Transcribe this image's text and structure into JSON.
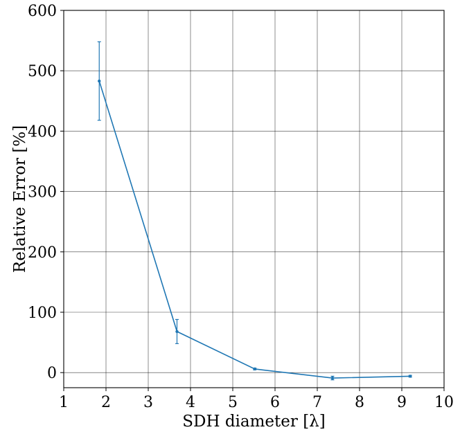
{
  "chart_data": {
    "type": "line",
    "title": "",
    "xlabel": "SDH diameter [λ]",
    "ylabel": "Relative Error [%]",
    "xlim": [
      1,
      10
    ],
    "ylim": [
      -25,
      600
    ],
    "x_ticks": [
      1,
      2,
      3,
      4,
      5,
      6,
      7,
      8,
      9,
      10
    ],
    "y_ticks": [
      0,
      100,
      200,
      300,
      400,
      500,
      600
    ],
    "grid": true,
    "legend": "none",
    "color": "#1f77b4",
    "series": [
      {
        "x": [
          1.84,
          3.68,
          5.52,
          7.36,
          9.2
        ],
        "y": [
          483,
          68,
          6,
          -9,
          -6
        ],
        "error": [
          65,
          20,
          1.5,
          3,
          1.5
        ]
      }
    ]
  }
}
